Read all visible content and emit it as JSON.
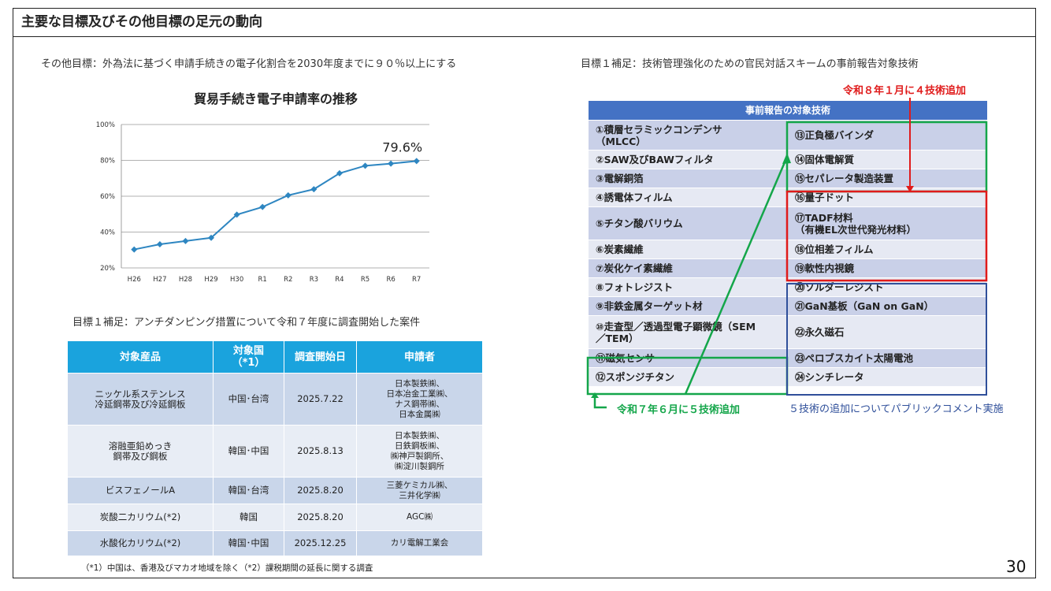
{
  "header": {
    "title": "主要な目標及びその他目標の足元の動向"
  },
  "left": {
    "caption": "その他目標：外為法に基づく申請手続きの電子化割合を2030年度までに９０％以上にする",
    "table_caption": "目標１補足：アンチダンピング措置について令和７年度に調査開始した案件",
    "table": {
      "headers": [
        "対象産品",
        "対象国\n（*1）",
        "調査開始日",
        "申請者"
      ],
      "rows": [
        [
          "ニッケル系ステンレス\n冷延鋼帯及び冷延鋼板",
          "中国･台湾",
          "2025.7.22",
          "日本製鉄㈱、\n日本冶金工業㈱、\nナス鋼帯㈱、\n日本金属㈱"
        ],
        [
          "溶融亜鉛めっき\n鋼帯及び鋼板",
          "韓国･中国",
          "2025.8.13",
          "日本製鉄㈱、\n日鉄鋼板㈱、\n㈱神戸製鋼所、\n㈱淀川製鋼所"
        ],
        [
          "ビスフェノールA",
          "韓国･台湾",
          "2025.8.20",
          "三菱ケミカル㈱、\n三井化学㈱"
        ],
        [
          "炭酸二カリウム(*2)",
          "韓国",
          "2025.8.20",
          "AGC㈱"
        ],
        [
          "水酸化カリウム(*2)",
          "韓国･中国",
          "2025.12.25",
          "カリ電解工業会"
        ]
      ]
    },
    "footnote": "（*1）中国は、香港及びマカオ地域を除く（*2）課税期間の延長に関する調査"
  },
  "chart_data": {
    "type": "line",
    "title": "貿易手続き電子申請率の推移",
    "categories": [
      "H26",
      "H27",
      "H28",
      "H29",
      "H30",
      "R1",
      "R2",
      "R3",
      "R4",
      "R5",
      "R6",
      "R7"
    ],
    "values": [
      30.3,
      33.2,
      35.0,
      36.8,
      49.7,
      54.0,
      60.5,
      63.9,
      72.8,
      77.0,
      78.2,
      79.6
    ],
    "ylim": [
      20,
      100
    ],
    "yticks": [
      "20%",
      "40%",
      "60%",
      "80%",
      "100%"
    ],
    "grid": true,
    "annotation": "79.6%",
    "color": "#2e86c1"
  },
  "right": {
    "caption": "目標１補足：技術管理強化のための官民対話スキームの事前報告対象技術",
    "table_header": "事前報告の対象技術",
    "left_items": [
      "①積層セラミックコンデンサ\n（MLCC）",
      "②SAW及びBAWフィルタ",
      "③電解銅箔",
      "④誘電体フィルム",
      "⑤チタン酸バリウム",
      "⑥炭素繊維",
      "⑦炭化ケイ素繊維",
      "⑧フォトレジスト",
      "⑨非鉄金属ターゲット材",
      "⑩走査型／透過型電子顕微鏡（SEM\n／TEM）",
      "⑪磁気センサー",
      "⑫スポンジチタン"
    ],
    "right_items": [
      "⑬正負極バインダ",
      "⑭固体電解質",
      "⑮セパレータ製造装置",
      "⑯量子ドット",
      "⑰TADF材料\n（有機EL次世代発光材料）",
      "⑱位相差フィルム",
      "⑲軟性内視鏡",
      "⑳ソルダーレジスト",
      "㉑GaN基板（GaN on GaN）",
      "㉒永久磁石",
      "㉓ペロブスカイト太陽電池",
      "㉔シンチレータ"
    ],
    "note_red": "令和８年１月に４技術追加",
    "note_green": "令和７年６月に５技術追加",
    "note_blue": "５技術の追加についてパブリックコメント実施",
    "colors": {
      "red": "#e01b1b",
      "green": "#14a64a",
      "blue": "#2f4f9a"
    }
  },
  "page_number": "30"
}
